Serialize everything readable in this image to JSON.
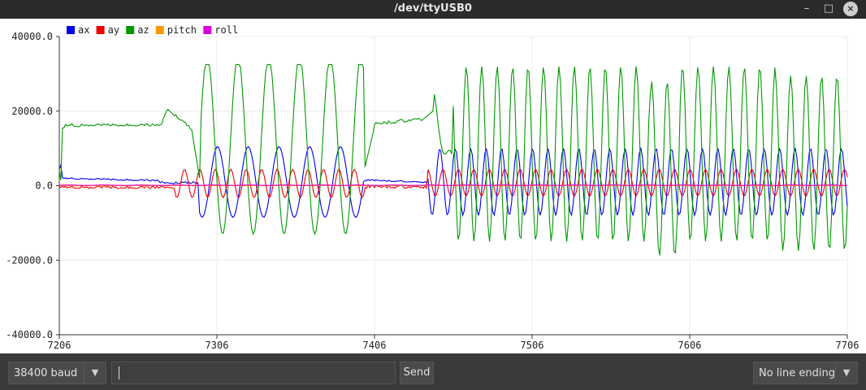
{
  "window": {
    "title": "/dev/ttyUSB0"
  },
  "window_buttons": {
    "minimize": "–",
    "maximize": "□",
    "close": "×"
  },
  "chart_data": {
    "type": "line",
    "title": "",
    "xlabel": "",
    "ylabel": "",
    "xlim": [
      7206,
      7706
    ],
    "ylim": [
      -40000,
      40000
    ],
    "grid": true,
    "legend_position": "top-left",
    "x_ticks": [
      "7206",
      "7306",
      "7406",
      "7506",
      "7606",
      "7706"
    ],
    "y_ticks": [
      "40000.0",
      "20000.0",
      "0.0",
      "-20000.0",
      "-40000.0"
    ],
    "series": [
      {
        "name": "ax",
        "color": "#0000ee"
      },
      {
        "name": "ay",
        "color": "#ee0000"
      },
      {
        "name": "az",
        "color": "#009900"
      },
      {
        "name": "pitch",
        "color": "#ff9900"
      },
      {
        "name": "roll",
        "color": "#dd00dd"
      }
    ]
  },
  "controls": {
    "baud_rate": "38400 baud",
    "message_input": "",
    "send_label": "Send",
    "line_ending": "No line ending",
    "dropdown_icon": "chevron-down-icon"
  }
}
